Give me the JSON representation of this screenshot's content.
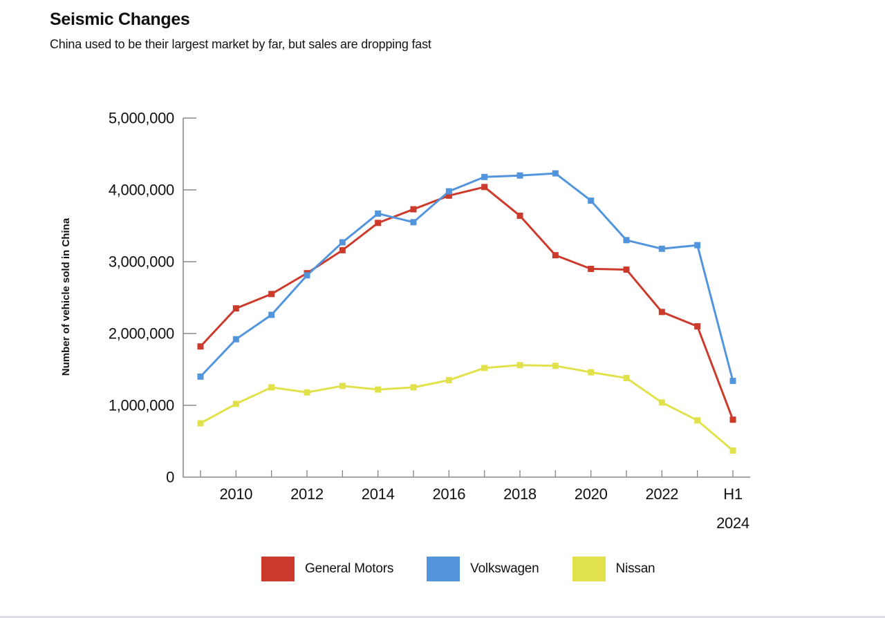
{
  "header": {
    "title": "Seismic Changes",
    "subtitle": "China used to be their largest market by far, but sales are dropping fast"
  },
  "chart_data": {
    "type": "line",
    "title": "Seismic Changes",
    "subtitle": "China used to be their largest market by far, but sales are dropping fast",
    "xlabel": "",
    "ylabel": "Number of vehicle sold in China",
    "ylim": [
      0,
      5000000
    ],
    "grid": false,
    "marker": "square",
    "legend_position": "bottom",
    "categories": [
      "2009",
      "2010",
      "2011",
      "2012",
      "2013",
      "2014",
      "2015",
      "2016",
      "2017",
      "2018",
      "2019",
      "2020",
      "2021",
      "2022",
      "2023",
      "H1 2024"
    ],
    "y_ticks": [
      0,
      1000000,
      2000000,
      3000000,
      4000000,
      5000000
    ],
    "y_tick_labels": [
      "0",
      "1,000,000",
      "2,000,000",
      "3,000,000",
      "4,000,000",
      "5,000,000"
    ],
    "x_ticks": [
      {
        "i": 1,
        "lines": [
          "2010"
        ]
      },
      {
        "i": 3,
        "lines": [
          "2012"
        ]
      },
      {
        "i": 5,
        "lines": [
          "2014"
        ]
      },
      {
        "i": 7,
        "lines": [
          "2016"
        ]
      },
      {
        "i": 9,
        "lines": [
          "2018"
        ]
      },
      {
        "i": 11,
        "lines": [
          "2020"
        ]
      },
      {
        "i": 13,
        "lines": [
          "2022"
        ]
      },
      {
        "i": 15,
        "lines": [
          "H1",
          "2024"
        ]
      }
    ],
    "series": [
      {
        "name": "General Motors",
        "color": "#cc3a2c",
        "values": [
          1820000,
          2350000,
          2550000,
          2840000,
          3160000,
          3540000,
          3730000,
          3920000,
          4040000,
          3640000,
          3090000,
          2900000,
          2890000,
          2300000,
          2100000,
          800000
        ]
      },
      {
        "name": "Volkswagen",
        "color": "#5295dc",
        "values": [
          1400000,
          1920000,
          2260000,
          2810000,
          3270000,
          3670000,
          3550000,
          3980000,
          4180000,
          4200000,
          4230000,
          3850000,
          3300000,
          3180000,
          3230000,
          1340000
        ]
      },
      {
        "name": "Nissan",
        "color": "#e1e24b",
        "values": [
          750000,
          1020000,
          1250000,
          1180000,
          1270000,
          1220000,
          1250000,
          1350000,
          1520000,
          1560000,
          1550000,
          1460000,
          1380000,
          1040000,
          790000,
          370000
        ]
      }
    ]
  },
  "colors": {
    "axis": "#8a8a8a",
    "tick_text": "#111111",
    "bottom_bar": "#dde0e4"
  }
}
